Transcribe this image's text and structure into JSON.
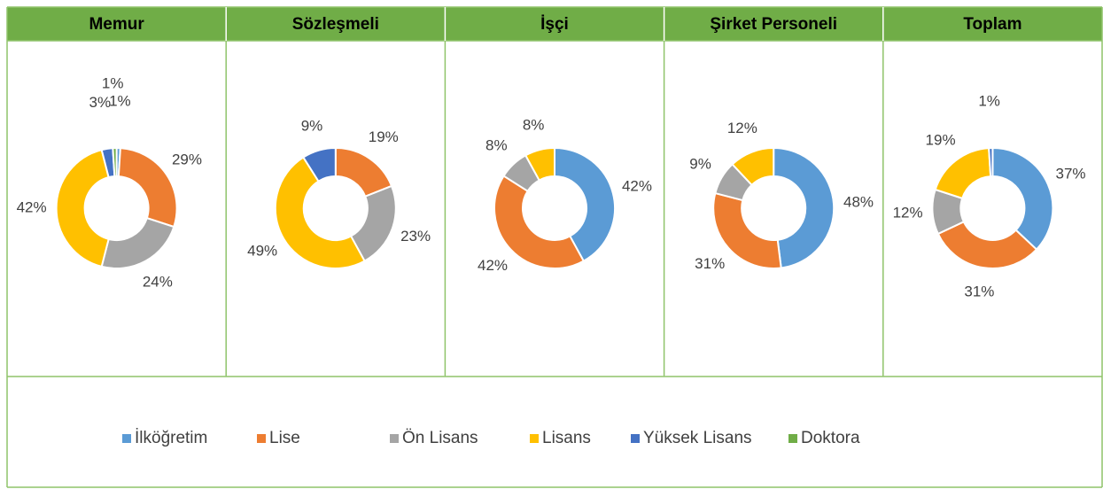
{
  "legend": {
    "categories": [
      "İlköğretim",
      "Lise",
      "Ön Lisans",
      "Lisans",
      "Yüksek Lisans",
      "Doktora"
    ],
    "colors": [
      "#5b9bd5",
      "#ed7d31",
      "#a5a5a5",
      "#ffc000",
      "#4472c4",
      "#70ad47"
    ]
  },
  "chart_data": [
    {
      "type": "pie",
      "donut": true,
      "title": "Memur",
      "values": [
        1,
        29,
        24,
        42,
        3,
        1
      ],
      "value_labels": [
        "1%",
        "29%",
        "24%",
        "42%",
        "3%",
        "1%"
      ]
    },
    {
      "type": "pie",
      "donut": true,
      "title": "Sözleşmeli",
      "values": [
        null,
        19,
        23,
        49,
        9,
        null
      ],
      "value_labels": [
        null,
        "19%",
        "23%",
        "49%",
        "9%",
        null
      ]
    },
    {
      "type": "pie",
      "donut": true,
      "title": "İşçi",
      "values": [
        42,
        42,
        8,
        8,
        null,
        null
      ],
      "value_labels": [
        "42%",
        "42%",
        "8%",
        "8%",
        null,
        null
      ]
    },
    {
      "type": "pie",
      "donut": true,
      "title": "Şirket Personeli",
      "values": [
        48,
        31,
        9,
        12,
        null,
        null
      ],
      "value_labels": [
        "48%",
        "31%",
        "9%",
        "12%",
        null,
        null
      ]
    },
    {
      "type": "pie",
      "donut": true,
      "title": "Toplam",
      "values": [
        37,
        31,
        12,
        19,
        1,
        null
      ],
      "value_labels": [
        "37%",
        "31%",
        "12%",
        "19%",
        "1%",
        null
      ]
    }
  ]
}
